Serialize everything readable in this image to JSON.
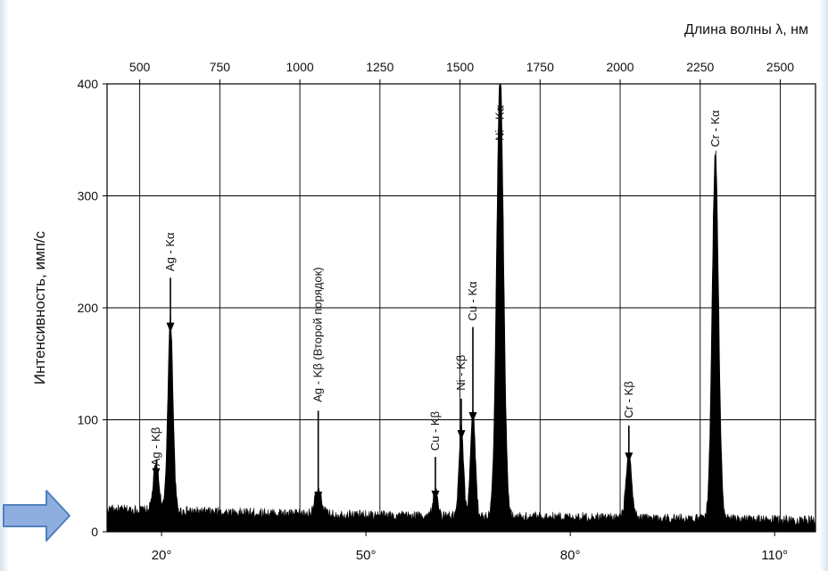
{
  "chart_data": {
    "type": "area",
    "title": "",
    "x_bottom": {
      "label": "",
      "range": [
        12,
        116
      ],
      "ticks": [
        20,
        50,
        80,
        110
      ],
      "tick_labels": [
        "20°",
        "50°",
        "80°",
        "110°"
      ]
    },
    "x_top": {
      "label": "Длина волны λ, нм",
      "range": [
        398,
        2610
      ],
      "ticks": [
        500,
        750,
        1000,
        1250,
        1500,
        1750,
        2000,
        2250,
        2500
      ],
      "tick_labels": [
        "500",
        "750",
        "1000",
        "1250",
        "1500",
        "1750",
        "2000",
        "2250",
        "2500"
      ]
    },
    "y": {
      "label": "Интенсивность, имп/с",
      "range": [
        0,
        400
      ],
      "ticks": [
        0,
        100,
        200,
        300,
        400
      ],
      "tick_labels": [
        "0",
        "100",
        "200",
        "300",
        "400"
      ]
    },
    "grid": true,
    "baseline": [
      [
        12,
        20
      ],
      [
        40,
        16
      ],
      [
        60,
        14
      ],
      [
        85,
        13
      ],
      [
        116,
        10
      ]
    ],
    "peaks": [
      {
        "x": 19.2,
        "height": 42,
        "width": 0.7,
        "label": "Ag - Kβ",
        "label_center": 76,
        "arrow_tip": 48
      },
      {
        "x": 21.3,
        "height": 172,
        "width": 0.65,
        "label": "Ag - Kα",
        "label_center": 250,
        "arrow_tip": 178
      },
      {
        "x": 43.0,
        "height": 20,
        "width": 0.9,
        "label": "Ag - Kβ (Второй порядок)",
        "label_center": 176,
        "arrow_tip": 27
      },
      {
        "x": 60.2,
        "height": 22,
        "width": 0.6,
        "label": "Cu - Kβ",
        "label_center": 90,
        "arrow_tip": 28
      },
      {
        "x": 64.0,
        "height": 80,
        "width": 0.55,
        "label": "Ni - Kβ",
        "label_center": 142,
        "arrow_tip": 82
      },
      {
        "x": 65.7,
        "height": 96,
        "width": 0.6,
        "label": "Cu - Kα",
        "label_center": 206,
        "arrow_tip": 98
      },
      {
        "x": 69.7,
        "height": 400,
        "width": 0.85,
        "label": "Ni - Kα",
        "label_center": 365,
        "arrow_tip": null
      },
      {
        "x": 88.6,
        "height": 55,
        "width": 0.7,
        "label": "Cr - Kβ",
        "label_center": 118,
        "arrow_tip": 62
      },
      {
        "x": 101.3,
        "height": 328,
        "width": 0.8,
        "label": "Cr - Kα",
        "label_center": 360,
        "arrow_tip": null
      }
    ]
  }
}
